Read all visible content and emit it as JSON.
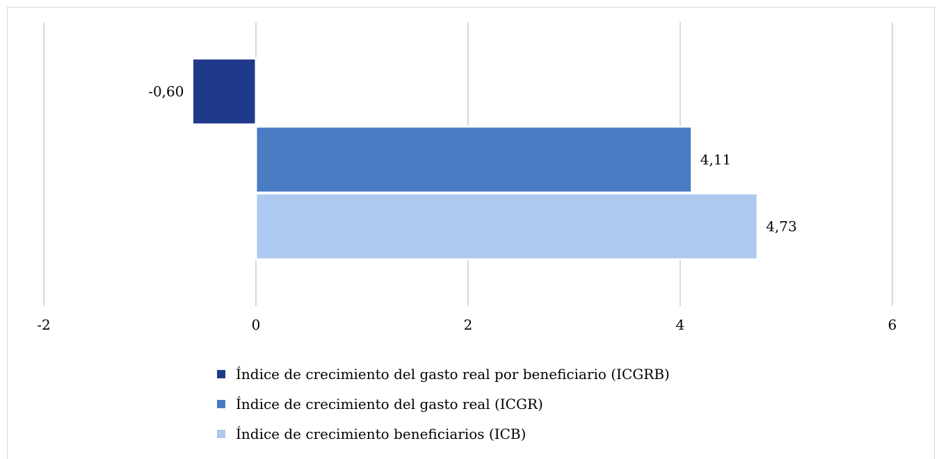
{
  "chart_data": {
    "type": "bar",
    "orientation": "horizontal",
    "title": "",
    "xlabel": "",
    "ylabel": "",
    "xlim": [
      -2,
      6
    ],
    "xticks": [
      -2,
      0,
      2,
      4,
      6
    ],
    "grid": "vertical",
    "legend_position": "bottom",
    "series": [
      {
        "name": "Índice de crecimiento del gasto real por beneficiario (ICGRB)",
        "value": -0.6,
        "label": "-0,60",
        "color": "#1f3a8a"
      },
      {
        "name": "Índice de crecimiento del gasto real (ICGR)",
        "value": 4.11,
        "label": "4,11",
        "color": "#4a7cc4"
      },
      {
        "name": "Índice de crecimiento beneficiarios (ICB)",
        "value": 4.73,
        "label": "4,73",
        "color": "#adc9f0"
      }
    ]
  }
}
